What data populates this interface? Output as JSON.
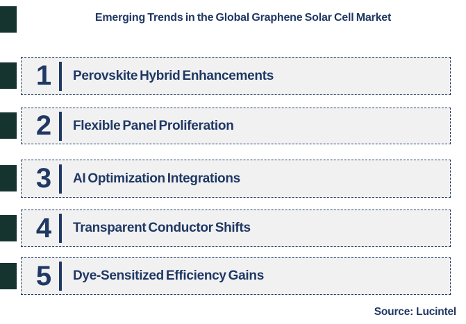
{
  "title": "Emerging Trends in the Global Graphene Solar Cell Market",
  "trends": [
    {
      "rank": "1",
      "label": "Perovskite Hybrid Enhancements"
    },
    {
      "rank": "2",
      "label": "Flexible Panel Proliferation"
    },
    {
      "rank": "3",
      "label": "AI Optimization Integrations"
    },
    {
      "rank": "4",
      "label": "Transparent Conductor Shifts"
    },
    {
      "rank": "5",
      "label": "Dye-Sensitized Efficiency Gains"
    }
  ],
  "source": "Source: Lucintel",
  "colors": {
    "navy_text": "#1F3864",
    "box_fill": "#F1F1F2",
    "box_border": "#1F3864",
    "accent_square": "#15342F",
    "background": "#FFFFFF"
  }
}
